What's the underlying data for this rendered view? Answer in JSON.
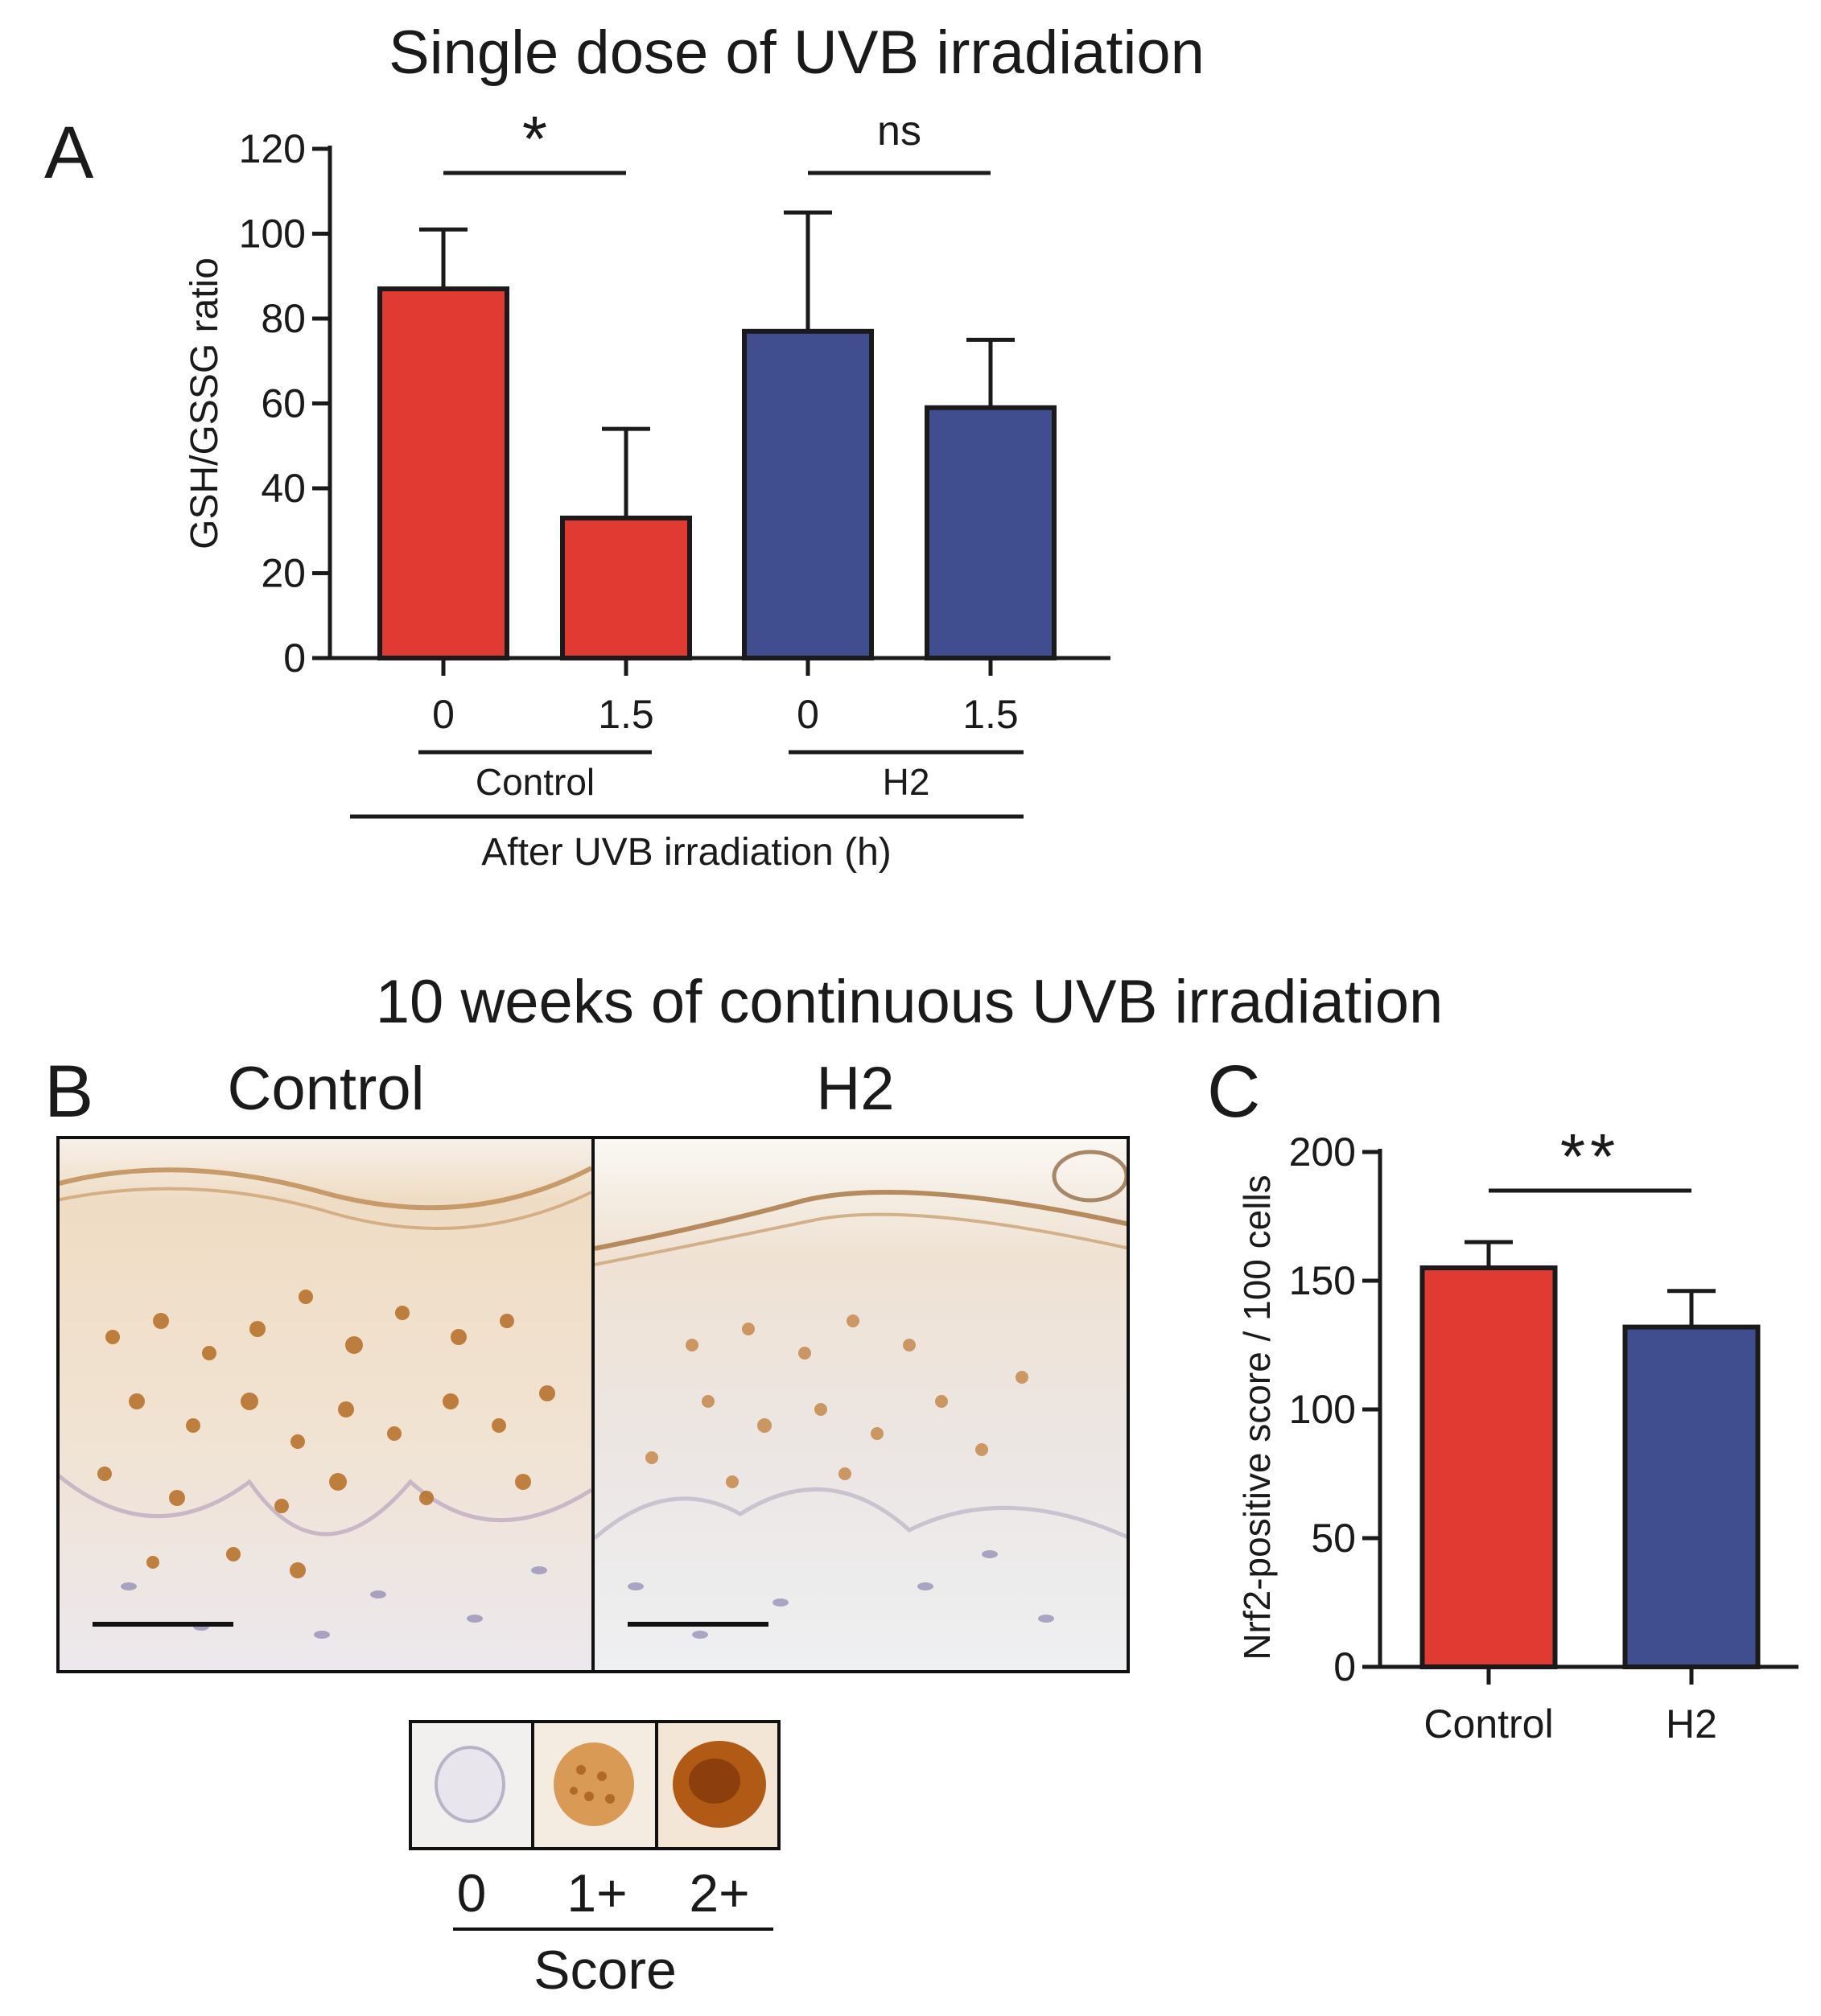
{
  "panel_a": {
    "label": "A",
    "title": "Single dose of UVB irradiation"
  },
  "panel_b": {
    "label": "B",
    "super_title": "10 weeks of continuous UVB irradiation",
    "control_label": "Control",
    "h2_label": "H2",
    "score_labels": [
      "0",
      "1+",
      "2+"
    ],
    "score_title": "Score"
  },
  "panel_c": {
    "label": "C"
  },
  "colors": {
    "control": "#E03A32",
    "h2": "#404D8E",
    "stroke": "#1a1a1a"
  },
  "chart_data": [
    {
      "type": "bar",
      "title": "Single dose of UVB irradiation",
      "ylabel": "GSH/GSSG ratio",
      "xlabel": "After UVB irradiation (h)",
      "ylim": [
        0,
        120
      ],
      "yticks": [
        0,
        20,
        40,
        60,
        80,
        100,
        120
      ],
      "categories": [
        "0",
        "1.5",
        "0",
        "1.5"
      ],
      "groups": [
        "Control",
        "H2"
      ],
      "values": [
        87,
        33,
        77,
        59
      ],
      "errors": [
        14,
        21,
        28,
        16
      ],
      "colors": [
        "control",
        "control",
        "h2",
        "h2"
      ],
      "significance": [
        {
          "from": 0,
          "to": 1,
          "label": "*"
        },
        {
          "from": 2,
          "to": 3,
          "label": "ns"
        }
      ]
    },
    {
      "type": "bar",
      "ylabel": "Nrf2-positive score / 100 cells",
      "ylim": [
        0,
        200
      ],
      "yticks": [
        0,
        50,
        100,
        150,
        200
      ],
      "categories": [
        "Control",
        "H2"
      ],
      "values": [
        155,
        132
      ],
      "errors": [
        10,
        14
      ],
      "colors": [
        "control",
        "h2"
      ],
      "significance": [
        {
          "from": 0,
          "to": 1,
          "label": "**"
        }
      ]
    }
  ]
}
